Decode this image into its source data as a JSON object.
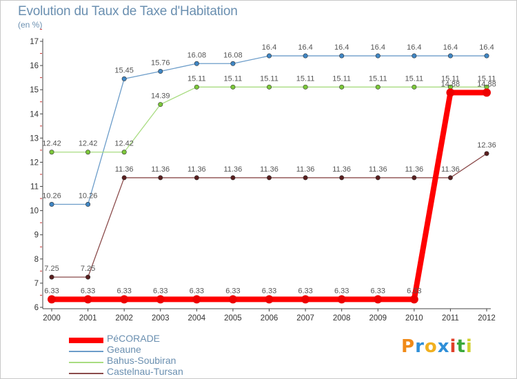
{
  "title": "Evolution du Taux de Taxe d'Habitation",
  "unit": "(en %)",
  "logo": {
    "letters": [
      "P",
      "r",
      "o",
      "x",
      "i",
      "t",
      "i"
    ],
    "colors": [
      "#f08a18",
      "#2f8fd8",
      "#f0b020",
      "#2f8fd8",
      "#e0402a",
      "#3aa83a",
      "#d0d030"
    ]
  },
  "chart_data": {
    "type": "line",
    "title": "Evolution du Taux de Taxe d'Habitation",
    "ylabel": "(en %)",
    "xlabel": "",
    "x": [
      "2000",
      "2001",
      "2002",
      "2003",
      "2004",
      "2005",
      "2006",
      "2007",
      "2008",
      "2009",
      "2010",
      "2011",
      "2012"
    ],
    "ylim": [
      6,
      17
    ],
    "yticks": [
      "6",
      "7",
      "8",
      "9",
      "10",
      "11",
      "12",
      "13",
      "14",
      "15",
      "16",
      "17"
    ],
    "grid": false,
    "legend_position": "bottom-left",
    "series": [
      {
        "name": "Geaune",
        "color": "#6b9cc9",
        "marker_color": "#3f86c4",
        "values": [
          10.26,
          10.26,
          15.45,
          15.76,
          16.08,
          16.08,
          16.4,
          16.4,
          16.4,
          16.4,
          16.4,
          16.4,
          16.4
        ],
        "labels": [
          "10.26",
          "10.26",
          "15.45",
          "15.76",
          "16.08",
          "16.08",
          "16.4",
          "16.4",
          "16.4",
          "16.4",
          "16.4",
          "16.4",
          "16.4"
        ]
      },
      {
        "name": "Bahus-Soubiran",
        "color": "#a8dc80",
        "marker_color": "#7cc83a",
        "values": [
          12.42,
          12.42,
          12.42,
          14.39,
          15.11,
          15.11,
          15.11,
          15.11,
          15.11,
          15.11,
          15.11,
          15.11,
          15.11
        ],
        "labels": [
          "12.42",
          "12.42",
          "12.42",
          "14.39",
          "15.11",
          "15.11",
          "15.11",
          "15.11",
          "15.11",
          "15.11",
          "15.11",
          "15.11",
          "15.11"
        ]
      },
      {
        "name": "Castelnau-Tursan",
        "color": "#8a4a4a",
        "marker_color": "#5a1f1f",
        "values": [
          7.25,
          7.25,
          11.36,
          11.36,
          11.36,
          11.36,
          11.36,
          11.36,
          11.36,
          11.36,
          11.36,
          11.36,
          12.36
        ],
        "labels": [
          "7.25",
          "7.25",
          "11.36",
          "11.36",
          "11.36",
          "11.36",
          "11.36",
          "11.36",
          "11.36",
          "11.36",
          "11.36",
          "11.36",
          "12.36"
        ]
      },
      {
        "name": "PéCORADE",
        "color": "#ff0000",
        "marker_color": "#ee0000",
        "values": [
          6.33,
          6.33,
          6.33,
          6.33,
          6.33,
          6.33,
          6.33,
          6.33,
          6.33,
          6.33,
          6.33,
          14.88,
          14.88
        ],
        "labels": [
          "6.33",
          "6.33",
          "6.33",
          "6.33",
          "6.33",
          "6.33",
          "6.33",
          "6.33",
          "6.33",
          "6.33",
          "6.33",
          "14.88",
          "14.88"
        ]
      }
    ]
  },
  "legend": [
    {
      "label": "PéCORADE",
      "color": "#ff0000",
      "weight": "heavy"
    },
    {
      "label": "Geaune",
      "color": "#6b9cc9",
      "weight": "thin"
    },
    {
      "label": "Bahus-Soubiran",
      "color": "#a8dc80",
      "weight": "thin"
    },
    {
      "label": "Castelnau-Tursan",
      "color": "#8a4a4a",
      "weight": "thin"
    }
  ]
}
